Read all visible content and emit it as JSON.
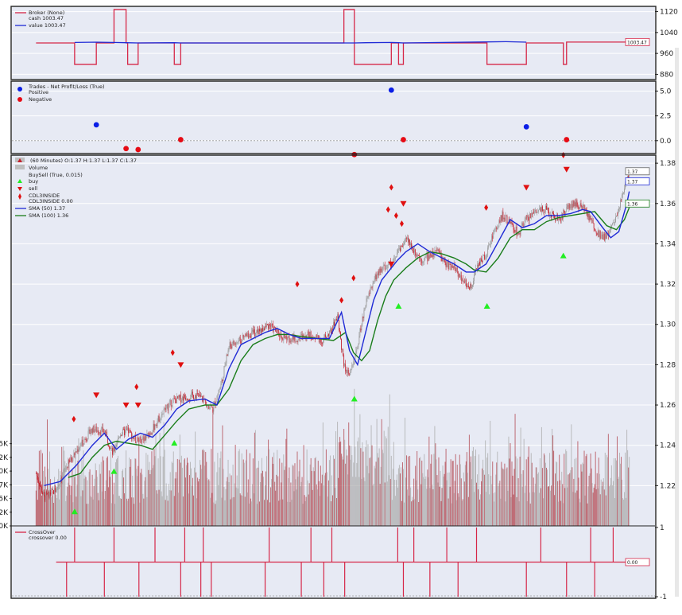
{
  "chart_data": [
    {
      "type": "line",
      "legend": [
        "Broker (None)",
        "cash 1003.47",
        "value 1003.47"
      ],
      "colors": {
        "cash": "#d62748",
        "value": "#1f2ad6"
      },
      "y_ticks": [
        "1120",
        "1040",
        "960",
        "880"
      ],
      "y_tick_values": [
        1120,
        1040,
        960,
        880
      ],
      "ylim": [
        860,
        1140
      ],
      "last_value_label": "1003.47",
      "start_hour": 30,
      "end_hour": 640,
      "cash_steps": [
        {
          "h": 30,
          "v": 1000
        },
        {
          "h": 78,
          "v": 918
        },
        {
          "h": 105,
          "v": 1000
        },
        {
          "h": 127,
          "v": 1128
        },
        {
          "h": 142,
          "v": 1000
        },
        {
          "h": 144,
          "v": 918
        },
        {
          "h": 157,
          "v": 1000
        },
        {
          "h": 202,
          "v": 918
        },
        {
          "h": 210,
          "v": 1000
        },
        {
          "h": 413,
          "v": 1128
        },
        {
          "h": 426,
          "v": 918
        },
        {
          "h": 472,
          "v": 1000
        },
        {
          "h": 481,
          "v": 918
        },
        {
          "h": 487,
          "v": 1000
        },
        {
          "h": 591,
          "v": 918
        },
        {
          "h": 640,
          "v": 1000
        },
        {
          "h": 686,
          "v": 918
        },
        {
          "h": 690,
          "v": 1003.47
        },
        {
          "h": 770,
          "v": 1003.47
        }
      ],
      "value_points": [
        {
          "h": 78,
          "v": 1002
        },
        {
          "h": 105,
          "v": 1003
        },
        {
          "h": 127,
          "v": 1002
        },
        {
          "h": 142,
          "v": 1001
        },
        {
          "h": 157,
          "v": 1000
        },
        {
          "h": 202,
          "v": 1001
        },
        {
          "h": 210,
          "v": 1000
        },
        {
          "h": 426,
          "v": 1000
        },
        {
          "h": 440,
          "v": 1001
        },
        {
          "h": 472,
          "v": 1002
        },
        {
          "h": 481,
          "v": 1001
        },
        {
          "h": 487,
          "v": 1000
        },
        {
          "h": 591,
          "v": 1004
        },
        {
          "h": 615,
          "v": 1005
        },
        {
          "h": 640,
          "v": 1003
        }
      ]
    },
    {
      "type": "scatter",
      "legend": [
        "Trades - Net Profit/Loss (True)",
        "Positive",
        "Negative"
      ],
      "colors": {
        "positive": "#0a1ee6",
        "negative": "#e60a14"
      },
      "y_ticks": [
        "5.0",
        "2.5",
        "0.0"
      ],
      "y_tick_values": [
        5.0,
        2.5,
        0.0
      ],
      "ylim": [
        -1.3,
        6.0
      ],
      "positive": [
        {
          "h": 105,
          "v": 1.6
        },
        {
          "h": 472,
          "v": 5.1
        },
        {
          "h": 640,
          "v": 1.4
        }
      ],
      "negative": [
        {
          "h": 142,
          "v": -0.8
        },
        {
          "h": 157,
          "v": -0.9
        },
        {
          "h": 210,
          "v": 0.1
        },
        {
          "h": 426,
          "v": -1.4
        },
        {
          "h": 487,
          "v": 0.1
        },
        {
          "h": 690,
          "v": 0.1
        }
      ]
    },
    {
      "type": "candlestick",
      "legend": [
        "(60 Minutes) O:1.37 H:1.37 L:1.37 C:1.37",
        "Volume",
        "BuySell (True, 0.015)",
        "buy",
        "sell",
        "CDL3INSIDE",
        "CDL3INSIDE 0.00",
        "SMA (50) 1.37",
        "SMA (100) 1.36"
      ],
      "colors": {
        "candle": "#c4202c",
        "volume": "#b0404a",
        "buy": "#22ee22",
        "sell": "#e01010",
        "pattern": "#e01010",
        "sma50": "#1f2ad6",
        "sma100": "#1a7d1a"
      },
      "y_ticks": [
        "1.38",
        "1.36",
        "1.34",
        "1.32",
        "1.30",
        "1.28",
        "1.26",
        "1.24",
        "1.22"
      ],
      "y_tick_values": [
        1.38,
        1.36,
        1.34,
        1.32,
        1.3,
        1.28,
        1.26,
        1.24,
        1.22
      ],
      "ylim": [
        1.2,
        1.384
      ],
      "volume_ticks": [
        "5K",
        "2K",
        "0K",
        "7K",
        "5K",
        "2K",
        "0K"
      ],
      "volume_tick_values": [
        15,
        12.5,
        10,
        7.5,
        5,
        2.5,
        0
      ],
      "volume_max_units": 27,
      "last_price_labels": [
        "1.37",
        "1.37",
        "1.36"
      ],
      "close_waypoints": [
        [
          30,
          1.226
        ],
        [
          40,
          1.214
        ],
        [
          55,
          1.218
        ],
        [
          70,
          1.231
        ],
        [
          85,
          1.24
        ],
        [
          100,
          1.248
        ],
        [
          115,
          1.247
        ],
        [
          125,
          1.236
        ],
        [
          135,
          1.246
        ],
        [
          145,
          1.247
        ],
        [
          155,
          1.242
        ],
        [
          165,
          1.243
        ],
        [
          175,
          1.248
        ],
        [
          185,
          1.255
        ],
        [
          200,
          1.262
        ],
        [
          215,
          1.264
        ],
        [
          230,
          1.265
        ],
        [
          240,
          1.262
        ],
        [
          250,
          1.258
        ],
        [
          260,
          1.27
        ],
        [
          270,
          1.289
        ],
        [
          280,
          1.291
        ],
        [
          295,
          1.295
        ],
        [
          310,
          1.297
        ],
        [
          320,
          1.3
        ],
        [
          330,
          1.296
        ],
        [
          340,
          1.293
        ],
        [
          355,
          1.293
        ],
        [
          370,
          1.295
        ],
        [
          385,
          1.292
        ],
        [
          395,
          1.295
        ],
        [
          405,
          1.305
        ],
        [
          413,
          1.28
        ],
        [
          420,
          1.274
        ],
        [
          430,
          1.29
        ],
        [
          440,
          1.31
        ],
        [
          450,
          1.322
        ],
        [
          460,
          1.328
        ],
        [
          470,
          1.33
        ],
        [
          480,
          1.336
        ],
        [
          490,
          1.343
        ],
        [
          500,
          1.337
        ],
        [
          510,
          1.332
        ],
        [
          520,
          1.334
        ],
        [
          530,
          1.336
        ],
        [
          540,
          1.33
        ],
        [
          550,
          1.328
        ],
        [
          560,
          1.323
        ],
        [
          570,
          1.318
        ],
        [
          580,
          1.33
        ],
        [
          590,
          1.335
        ],
        [
          600,
          1.346
        ],
        [
          610,
          1.354
        ],
        [
          620,
          1.35
        ],
        [
          630,
          1.345
        ],
        [
          640,
          1.352
        ],
        [
          650,
          1.356
        ],
        [
          660,
          1.358
        ],
        [
          670,
          1.355
        ],
        [
          680,
          1.352
        ],
        [
          690,
          1.357
        ],
        [
          700,
          1.36
        ],
        [
          710,
          1.358
        ],
        [
          720,
          1.352
        ],
        [
          730,
          1.345
        ],
        [
          740,
          1.343
        ],
        [
          750,
          1.352
        ],
        [
          760,
          1.364
        ],
        [
          768,
          1.376
        ]
      ],
      "sma50_waypoints": [
        [
          40,
          1.22
        ],
        [
          60,
          1.222
        ],
        [
          80,
          1.23
        ],
        [
          100,
          1.24
        ],
        [
          115,
          1.246
        ],
        [
          130,
          1.238
        ],
        [
          145,
          1.243
        ],
        [
          160,
          1.246
        ],
        [
          175,
          1.244
        ],
        [
          190,
          1.25
        ],
        [
          205,
          1.258
        ],
        [
          220,
          1.262
        ],
        [
          240,
          1.263
        ],
        [
          255,
          1.26
        ],
        [
          270,
          1.278
        ],
        [
          285,
          1.29
        ],
        [
          300,
          1.293
        ],
        [
          315,
          1.296
        ],
        [
          330,
          1.298
        ],
        [
          345,
          1.295
        ],
        [
          360,
          1.293
        ],
        [
          380,
          1.293
        ],
        [
          395,
          1.293
        ],
        [
          410,
          1.306
        ],
        [
          420,
          1.287
        ],
        [
          430,
          1.28
        ],
        [
          440,
          1.296
        ],
        [
          450,
          1.312
        ],
        [
          460,
          1.322
        ],
        [
          470,
          1.327
        ],
        [
          480,
          1.332
        ],
        [
          490,
          1.336
        ],
        [
          505,
          1.34
        ],
        [
          520,
          1.336
        ],
        [
          535,
          1.333
        ],
        [
          550,
          1.33
        ],
        [
          565,
          1.326
        ],
        [
          575,
          1.326
        ],
        [
          590,
          1.33
        ],
        [
          605,
          1.341
        ],
        [
          620,
          1.352
        ],
        [
          635,
          1.348
        ],
        [
          650,
          1.35
        ],
        [
          665,
          1.354
        ],
        [
          680,
          1.354
        ],
        [
          695,
          1.355
        ],
        [
          710,
          1.357
        ],
        [
          720,
          1.356
        ],
        [
          735,
          1.348
        ],
        [
          745,
          1.343
        ],
        [
          755,
          1.346
        ],
        [
          765,
          1.36
        ],
        [
          768,
          1.366
        ]
      ],
      "sma100_waypoints": [
        [
          70,
          1.224
        ],
        [
          85,
          1.226
        ],
        [
          100,
          1.234
        ],
        [
          115,
          1.24
        ],
        [
          130,
          1.242
        ],
        [
          145,
          1.241
        ],
        [
          160,
          1.24
        ],
        [
          175,
          1.238
        ],
        [
          190,
          1.245
        ],
        [
          205,
          1.252
        ],
        [
          220,
          1.258
        ],
        [
          240,
          1.26
        ],
        [
          255,
          1.26
        ],
        [
          270,
          1.268
        ],
        [
          285,
          1.282
        ],
        [
          300,
          1.29
        ],
        [
          315,
          1.293
        ],
        [
          330,
          1.295
        ],
        [
          345,
          1.295
        ],
        [
          360,
          1.294
        ],
        [
          380,
          1.293
        ],
        [
          400,
          1.292
        ],
        [
          415,
          1.296
        ],
        [
          425,
          1.286
        ],
        [
          435,
          1.282
        ],
        [
          445,
          1.287
        ],
        [
          455,
          1.302
        ],
        [
          465,
          1.314
        ],
        [
          475,
          1.322
        ],
        [
          490,
          1.328
        ],
        [
          505,
          1.333
        ],
        [
          520,
          1.336
        ],
        [
          535,
          1.335
        ],
        [
          550,
          1.333
        ],
        [
          565,
          1.33
        ],
        [
          575,
          1.327
        ],
        [
          590,
          1.326
        ],
        [
          605,
          1.333
        ],
        [
          620,
          1.343
        ],
        [
          635,
          1.347
        ],
        [
          650,
          1.347
        ],
        [
          665,
          1.351
        ],
        [
          680,
          1.353
        ],
        [
          695,
          1.354
        ],
        [
          710,
          1.355
        ],
        [
          725,
          1.356
        ],
        [
          740,
          1.349
        ],
        [
          752,
          1.347
        ],
        [
          762,
          1.352
        ],
        [
          768,
          1.358
        ]
      ],
      "buy_markers": [
        [
          78,
          1.207
        ],
        [
          127,
          1.227
        ],
        [
          202,
          1.241
        ],
        [
          426,
          1.263
        ],
        [
          481,
          1.309
        ],
        [
          591,
          1.309
        ],
        [
          686,
          1.334
        ]
      ],
      "sell_markers": [
        [
          105,
          1.265
        ],
        [
          142,
          1.26
        ],
        [
          157,
          1.26
        ],
        [
          210,
          1.28
        ],
        [
          472,
          1.33
        ],
        [
          487,
          1.36
        ],
        [
          640,
          1.368
        ],
        [
          690,
          1.377
        ]
      ],
      "pattern_markers": [
        [
          77,
          1.253
        ],
        [
          155,
          1.269
        ],
        [
          200,
          1.286
        ],
        [
          355,
          1.32
        ],
        [
          410,
          1.312
        ],
        [
          425,
          1.323
        ],
        [
          472,
          1.368
        ],
        [
          468,
          1.357
        ],
        [
          478,
          1.354
        ],
        [
          485,
          1.35
        ],
        [
          590,
          1.358
        ],
        [
          686,
          1.384
        ]
      ]
    },
    {
      "type": "line",
      "legend": [
        "CrossOver",
        "crossover 0.00"
      ],
      "colors": {
        "line": "#d62748"
      },
      "y_ticks": [
        "1",
        "-1"
      ],
      "y_tick_values": [
        1,
        -1
      ],
      "ylim": [
        -1,
        1
      ],
      "last_value_label": "0.00",
      "start_hour": 55,
      "end_hour": 768,
      "up_spikes": [
        78,
        127,
        178,
        215,
        238,
        320,
        372,
        398,
        480,
        500,
        541,
        578,
        658,
        720,
        748
      ],
      "down_spikes": [
        68,
        115,
        158,
        210,
        235,
        248,
        315,
        360,
        388,
        414,
        487,
        520,
        555,
        640,
        690,
        725
      ]
    }
  ]
}
